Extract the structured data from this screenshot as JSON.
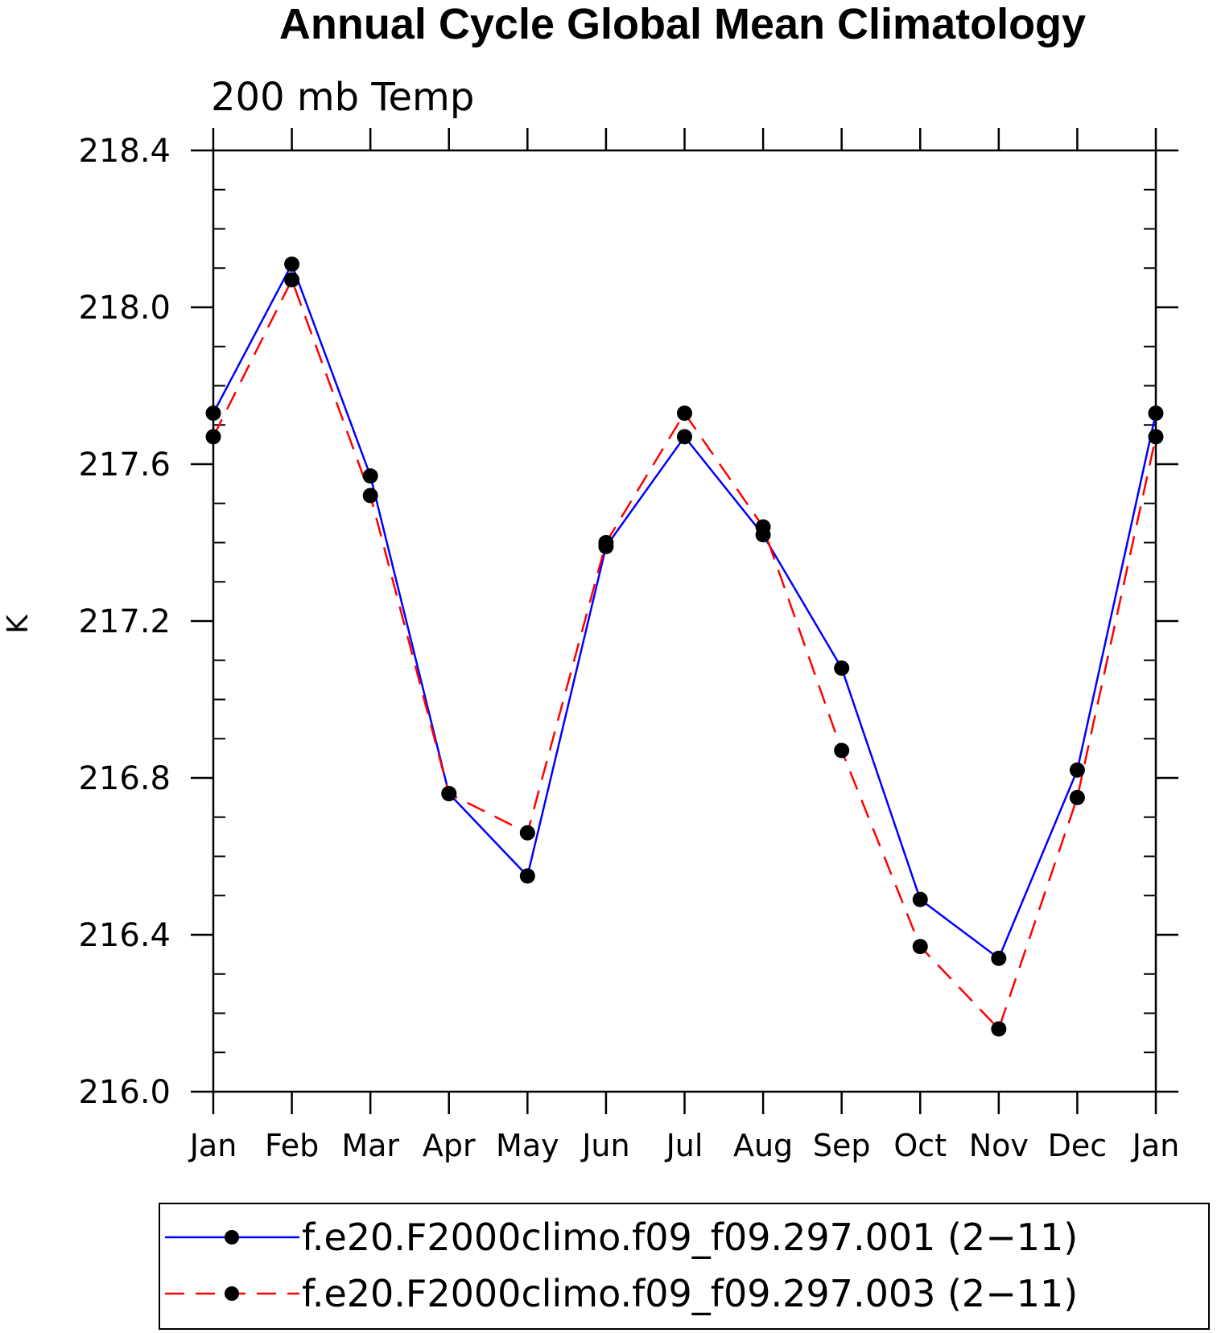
{
  "chart_data": {
    "type": "line",
    "title": "Annual Cycle Global Mean Climatology",
    "subtitle": "200 mb Temp",
    "ylabel": "K",
    "xlabel": "",
    "categories": [
      "Jan",
      "Feb",
      "Mar",
      "Apr",
      "May",
      "Jun",
      "Jul",
      "Aug",
      "Sep",
      "Oct",
      "Nov",
      "Dec",
      "Jan"
    ],
    "ylim": [
      216.0,
      218.4
    ],
    "yticks": [
      "216.0",
      "216.4",
      "216.8",
      "217.2",
      "217.6",
      "218.0",
      "218.4"
    ],
    "ytick_values": [
      216.0,
      216.4,
      216.8,
      217.2,
      217.6,
      218.0,
      218.4
    ],
    "y_minor_step": 0.1,
    "grid": false,
    "legend_position": "bottom",
    "series": [
      {
        "name": "f.e20.F2000climo.f09_f09.297.001 (2−11)",
        "color": "#0000ff",
        "dash": "solid",
        "marker": "filled-circle",
        "values": [
          217.73,
          218.11,
          217.57,
          216.76,
          216.55,
          217.39,
          217.67,
          217.42,
          217.08,
          216.49,
          216.34,
          216.82,
          217.73
        ]
      },
      {
        "name": "f.e20.F2000climo.f09_f09.297.003 (2−11)",
        "color": "#ff0000",
        "dash": "dashed",
        "marker": "filled-circle",
        "values": [
          217.67,
          218.07,
          217.52,
          216.76,
          216.66,
          217.4,
          217.73,
          217.44,
          216.87,
          216.37,
          216.16,
          216.75,
          217.67
        ]
      }
    ]
  }
}
